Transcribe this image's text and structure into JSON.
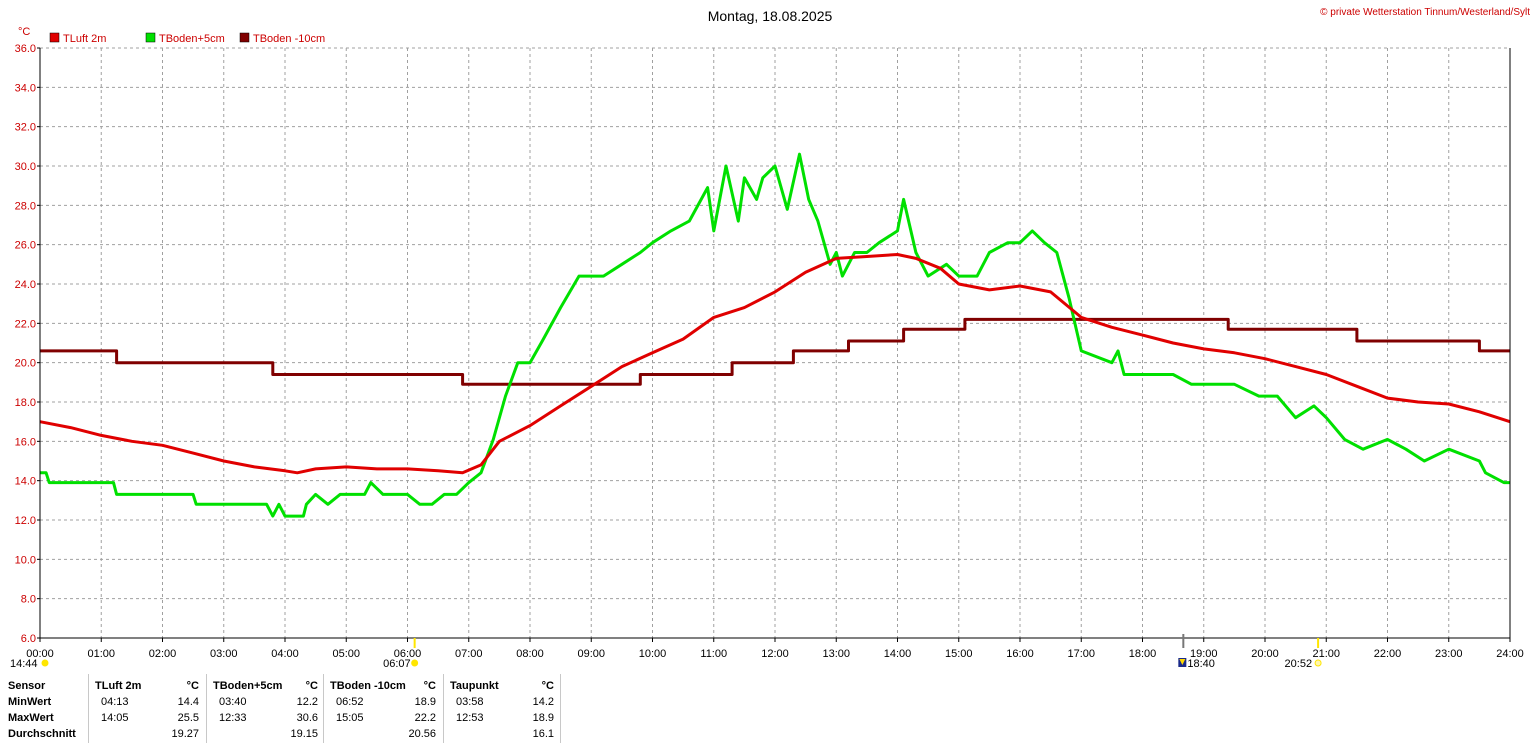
{
  "title": "Montag, 18.08.2025",
  "copyright": "© private Wetterstation Tinnum/Westerland/Sylt",
  "y_unit": "°C",
  "colors": {
    "tluft": "#e00000",
    "tboden5": "#00e000",
    "tboden10": "#800000",
    "grid": "#a0a0a0",
    "axis": "#cc0000",
    "sun": "#ffe600"
  },
  "chart_data": {
    "type": "line",
    "title": "Montag, 18.08.2025",
    "ylabel": "°C",
    "ylim": [
      6.0,
      36.0
    ],
    "xlim": [
      0,
      24
    ],
    "y_ticks": [
      "6.0",
      "8.0",
      "10.0",
      "12.0",
      "14.0",
      "16.0",
      "18.0",
      "20.0",
      "22.0",
      "24.0",
      "26.0",
      "28.0",
      "30.0",
      "32.0",
      "34.0",
      "36.0"
    ],
    "x_ticks": [
      "00:00",
      "01:00",
      "02:00",
      "03:00",
      "04:00",
      "05:00",
      "06:00",
      "07:00",
      "08:00",
      "09:00",
      "10:00",
      "11:00",
      "12:00",
      "13:00",
      "14:00",
      "15:00",
      "16:00",
      "17:00",
      "18:00",
      "19:00",
      "20:00",
      "21:00",
      "22:00",
      "23:00",
      "24:00"
    ],
    "grid": true,
    "legend_position": "top-left",
    "series": [
      {
        "name": "TLuft 2m",
        "color": "#e00000",
        "x": [
          0,
          0.5,
          1,
          1.5,
          2,
          2.5,
          3,
          3.5,
          4,
          4.2,
          4.5,
          5,
          5.5,
          6,
          6.5,
          6.9,
          7.2,
          7.5,
          8,
          8.5,
          9,
          9.5,
          10,
          10.5,
          11,
          11.5,
          12,
          12.5,
          13,
          13.5,
          14,
          14.3,
          14.7,
          15,
          15.5,
          16,
          16.5,
          17,
          17.5,
          18,
          18.5,
          19,
          19.5,
          20,
          20.5,
          21,
          21.5,
          22,
          22.5,
          23,
          23.5,
          24
        ],
        "y": [
          17.0,
          16.7,
          16.3,
          16.0,
          15.8,
          15.4,
          15.0,
          14.7,
          14.5,
          14.4,
          14.6,
          14.7,
          14.6,
          14.6,
          14.5,
          14.4,
          14.8,
          16.0,
          16.8,
          17.8,
          18.8,
          19.8,
          20.5,
          21.2,
          22.3,
          22.8,
          23.6,
          24.6,
          25.3,
          25.4,
          25.5,
          25.3,
          24.8,
          24.0,
          23.7,
          23.9,
          23.6,
          22.3,
          21.8,
          21.4,
          21.0,
          20.7,
          20.5,
          20.2,
          19.8,
          19.4,
          18.8,
          18.2,
          18.0,
          17.9,
          17.5,
          17.0
        ]
      },
      {
        "name": "TBoden+5cm",
        "color": "#00e000",
        "x": [
          0,
          0.1,
          0.15,
          1.2,
          1.25,
          1.35,
          2.5,
          2.55,
          3.7,
          3.8,
          3.9,
          4,
          4.3,
          4.35,
          4.5,
          4.7,
          4.9,
          5,
          5.3,
          5.4,
          5.6,
          5.8,
          6,
          6.2,
          6.4,
          6.6,
          6.8,
          7,
          7.2,
          7.4,
          7.6,
          7.8,
          8,
          8.2,
          8.5,
          8.8,
          9,
          9.2,
          9.5,
          9.8,
          10,
          10.3,
          10.6,
          10.9,
          11,
          11.2,
          11.4,
          11.5,
          11.7,
          11.8,
          12,
          12.2,
          12.4,
          12.55,
          12.7,
          12.9,
          13,
          13.1,
          13.3,
          13.5,
          13.7,
          14,
          14.1,
          14.3,
          14.5,
          14.8,
          15,
          15.3,
          15.5,
          15.8,
          16,
          16.2,
          16.4,
          16.6,
          16.8,
          17,
          17.5,
          17.6,
          17.7,
          18,
          18.5,
          18.8,
          19,
          19.5,
          19.9,
          20.2,
          20.5,
          20.8,
          21,
          21.3,
          21.6,
          22,
          22.3,
          22.6,
          23,
          23.5,
          23.6,
          23.9,
          24
        ],
        "y": [
          14.4,
          14.4,
          13.9,
          13.9,
          13.3,
          13.3,
          13.3,
          12.8,
          12.8,
          12.2,
          12.8,
          12.2,
          12.2,
          12.8,
          13.3,
          12.8,
          13.3,
          13.3,
          13.3,
          13.9,
          13.3,
          13.3,
          13.3,
          12.8,
          12.8,
          13.3,
          13.3,
          13.9,
          14.4,
          16.1,
          18.3,
          20.0,
          20.0,
          21.1,
          22.8,
          24.4,
          24.4,
          24.4,
          25.0,
          25.6,
          26.1,
          26.7,
          27.2,
          28.9,
          26.7,
          30.0,
          27.2,
          29.4,
          28.3,
          29.4,
          30.0,
          27.8,
          30.6,
          28.3,
          27.2,
          25.0,
          25.6,
          24.4,
          25.6,
          25.6,
          26.1,
          26.7,
          28.3,
          25.6,
          24.4,
          25.0,
          24.4,
          24.4,
          25.6,
          26.1,
          26.1,
          26.7,
          26.1,
          25.6,
          23.3,
          20.6,
          20.0,
          20.6,
          19.4,
          19.4,
          19.4,
          18.9,
          18.9,
          18.9,
          18.3,
          18.3,
          17.2,
          17.8,
          17.2,
          16.1,
          15.6,
          16.1,
          15.6,
          15.0,
          15.6,
          15.0,
          14.4,
          13.9,
          13.9
        ]
      },
      {
        "name": "TBoden -10cm",
        "color": "#800000",
        "x": [
          0,
          1.25,
          1.25,
          3.8,
          3.8,
          6.9,
          6.9,
          9.8,
          9.8,
          11.3,
          11.3,
          12.3,
          12.3,
          13.2,
          13.2,
          14.1,
          14.1,
          15.1,
          15.1,
          19.4,
          19.4,
          21.5,
          21.5,
          23.5,
          23.5,
          24
        ],
        "y": [
          20.6,
          20.6,
          20.0,
          20.0,
          19.4,
          19.4,
          18.9,
          18.9,
          19.4,
          19.4,
          20.0,
          20.0,
          20.6,
          20.6,
          21.1,
          21.1,
          21.7,
          21.7,
          22.2,
          22.2,
          21.7,
          21.7,
          21.1,
          21.1,
          20.6,
          20.6
        ]
      }
    ]
  },
  "markers": {
    "left": "14:44",
    "sunrise": "06:07",
    "current": "18:40",
    "sunset": "20:52"
  },
  "stats": {
    "headers": {
      "sensor": "Sensor",
      "tluft": "TLuft 2m",
      "tboden5": "TBoden+5cm",
      "tboden10": "TBoden -10cm",
      "taupunkt": "Taupunkt",
      "unit": "°C"
    },
    "rows": [
      {
        "label": "MinWert",
        "tluft_time": "04:13",
        "tluft": "14.4",
        "tboden5_time": "03:40",
        "tboden5": "12.2",
        "tboden10_time": "06:52",
        "tboden10": "18.9",
        "taupunkt_time": "03:58",
        "taupunkt": "14.2"
      },
      {
        "label": "MaxWert",
        "tluft_time": "14:05",
        "tluft": "25.5",
        "tboden5_time": "12:33",
        "tboden5": "30.6",
        "tboden10_time": "15:05",
        "tboden10": "22.2",
        "taupunkt_time": "12:53",
        "taupunkt": "18.9"
      },
      {
        "label": "Durchschnitt",
        "tluft_time": "",
        "tluft": "19.27",
        "tboden5_time": "",
        "tboden5": "19.15",
        "tboden10_time": "",
        "tboden10": "20.56",
        "taupunkt_time": "",
        "taupunkt": "16.1"
      }
    ]
  }
}
